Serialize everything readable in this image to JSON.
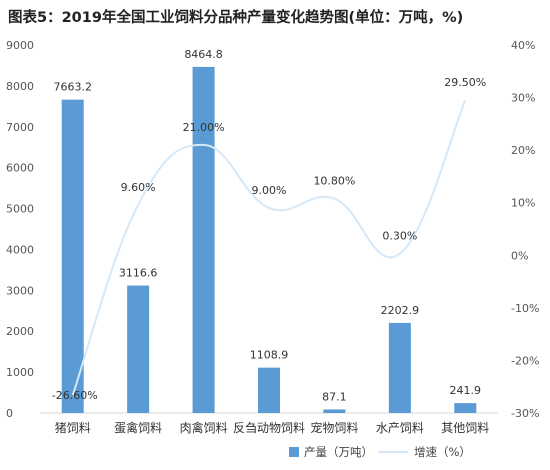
{
  "chart_data": {
    "type": "bar",
    "title": "图表5：2019年全国工业饲料分品种产量变化趋势图(单位：万吨，%)",
    "categories": [
      "猪饲料",
      "蛋禽饲料",
      "肉禽饲料",
      "反刍动物饲料",
      "宠物饲料",
      "水产饲料",
      "其他饲料"
    ],
    "series": [
      {
        "name": "产量（万吨）",
        "type": "bar",
        "axis": "left",
        "color": "#5b9bd5",
        "values": [
          7663.2,
          3116.6,
          8464.8,
          1108.9,
          87.1,
          2202.9,
          241.9
        ],
        "labels": [
          "7663.2",
          "3116.6",
          "8464.8",
          "1108.9",
          "87.1",
          "2202.9",
          "241.9"
        ]
      },
      {
        "name": "增速（%）",
        "type": "line",
        "axis": "right",
        "color": "#d6e8f7",
        "smooth": true,
        "values": [
          -26.6,
          9.6,
          21.0,
          9.0,
          10.8,
          0.3,
          29.5
        ],
        "labels": [
          "-26.60%",
          "9.60%",
          "21.00%",
          "9.00%",
          "10.80%",
          "0.30%",
          "29.50%"
        ]
      }
    ],
    "y_left": {
      "min": 0,
      "max": 9000,
      "ticks": [
        "0",
        "1000",
        "2000",
        "3000",
        "4000",
        "5000",
        "6000",
        "7000",
        "8000",
        "9000"
      ]
    },
    "y_right": {
      "min": -30,
      "max": 40,
      "ticks": [
        "-30%",
        "-20%",
        "-10%",
        "0%",
        "10%",
        "20%",
        "30%",
        "40%"
      ]
    },
    "grid": false,
    "legend_position": "bottom-right"
  }
}
